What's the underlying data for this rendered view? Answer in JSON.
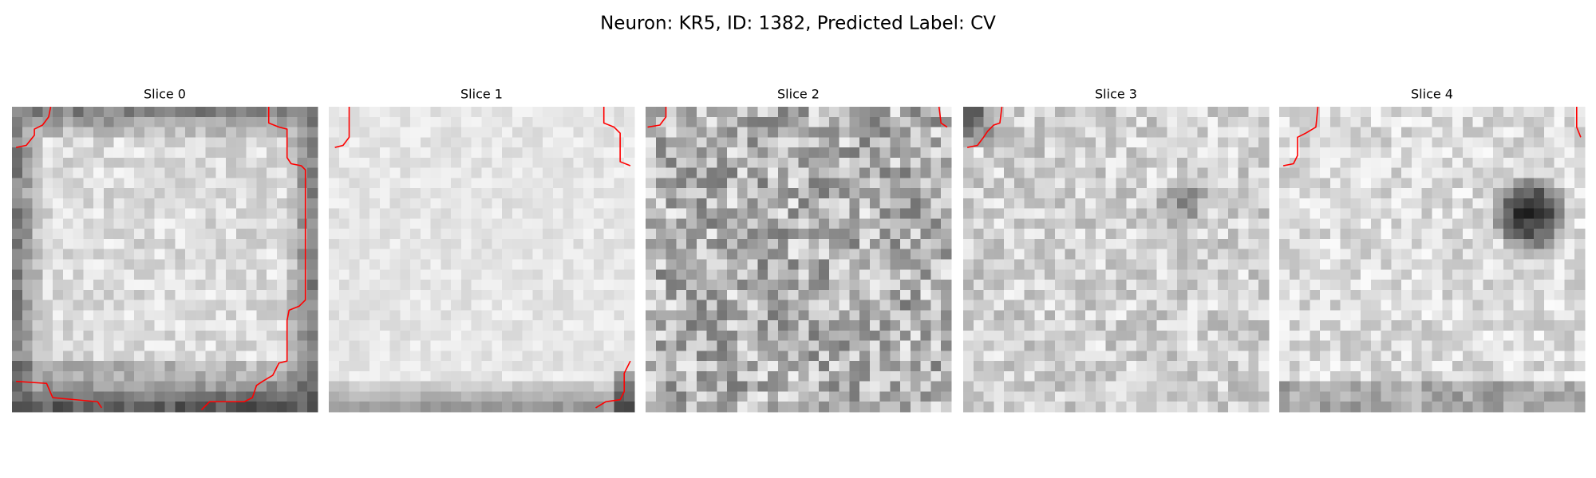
{
  "title": "Neuron: KR5, ID: 1382, Predicted Label: CV",
  "panels": [
    {
      "title": "Slice 0"
    },
    {
      "title": "Slice 1"
    },
    {
      "title": "Slice 2"
    },
    {
      "title": "Slice 3"
    },
    {
      "title": "Slice 4"
    }
  ]
}
